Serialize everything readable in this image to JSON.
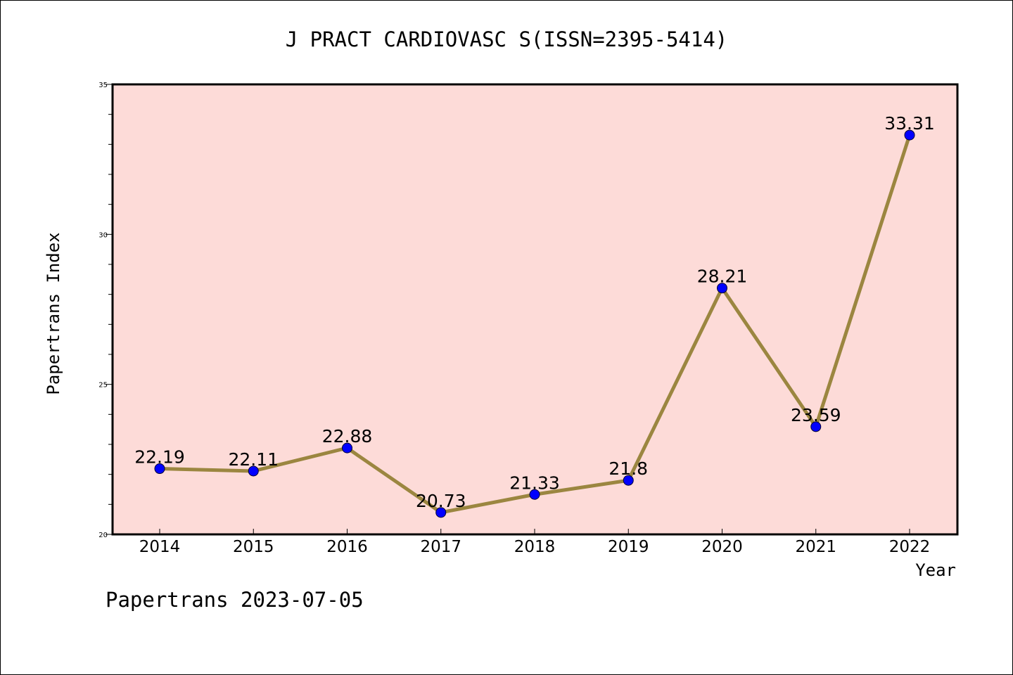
{
  "chart_data": {
    "type": "line",
    "title": "J PRACT CARDIOVASC S(ISSN=2395-5414)",
    "xlabel": "Year",
    "ylabel": "Papertrans Index",
    "categories": [
      "2014",
      "2015",
      "2016",
      "2017",
      "2018",
      "2019",
      "2020",
      "2021",
      "2022"
    ],
    "values": [
      22.19,
      22.11,
      22.88,
      20.73,
      21.33,
      21.8,
      28.21,
      23.59,
      33.31
    ],
    "data_labels": [
      "22.19",
      "22.11",
      "22.88",
      "20.73",
      "21.33",
      "21.8",
      "28.21",
      "23.59",
      "33.31"
    ],
    "ylim": [
      20,
      35
    ],
    "yticks": [
      20,
      25,
      30,
      35
    ],
    "grid": false,
    "colors": {
      "plot_background": "#fddbd8",
      "line": "#9b8640",
      "marker": "#0000ff"
    }
  },
  "footer": "Papertrans 2023-07-05"
}
